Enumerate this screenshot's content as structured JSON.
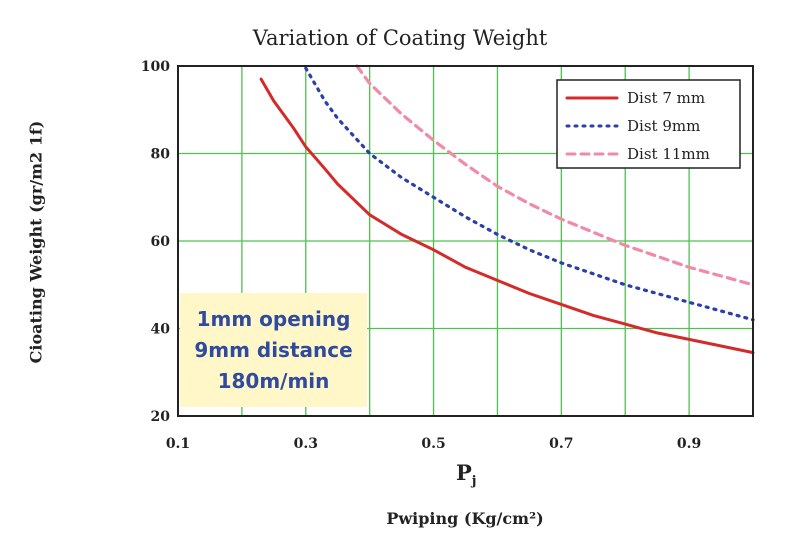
{
  "chart_data": {
    "type": "line",
    "title": "Variation of Coating Weight",
    "xlabel": "Pwiping (Kg/cm²)",
    "ylabel": "Cioating Weight (gr/m2 1f)",
    "xsymbol": "P",
    "xsymbol_sub": "j",
    "xlim": [
      0.1,
      1.0
    ],
    "ylim": [
      20,
      100
    ],
    "xticks": [
      0.1,
      0.3,
      0.5,
      0.7,
      0.9
    ],
    "yticks": [
      20,
      40,
      60,
      80,
      100
    ],
    "grid": true,
    "legend_position": "top-right",
    "series": [
      {
        "name": "Dist 7 mm",
        "color": "#d42a2a",
        "style": "solid",
        "x": [
          0.23,
          0.25,
          0.28,
          0.3,
          0.33,
          0.35,
          0.4,
          0.45,
          0.5,
          0.55,
          0.6,
          0.65,
          0.7,
          0.75,
          0.8,
          0.85,
          0.9,
          0.95,
          1.0
        ],
        "y": [
          97,
          92,
          86,
          81.5,
          76.5,
          73,
          66,
          61.5,
          58,
          54,
          51,
          48,
          45.5,
          43,
          41,
          39,
          37.5,
          36,
          34.5
        ]
      },
      {
        "name": "Dist 9mm",
        "color": "#2a3fa8",
        "style": "dotted",
        "x": [
          0.3,
          0.33,
          0.35,
          0.4,
          0.45,
          0.5,
          0.55,
          0.6,
          0.65,
          0.7,
          0.75,
          0.8,
          0.85,
          0.9,
          0.95,
          1.0
        ],
        "y": [
          99.5,
          92,
          88,
          80,
          74.5,
          70,
          65.5,
          61.5,
          58,
          55,
          52.5,
          50,
          48,
          46,
          44,
          42
        ]
      },
      {
        "name": "Dist 11mm",
        "color": "#f08aa8",
        "style": "dashed",
        "x": [
          0.38,
          0.4,
          0.45,
          0.5,
          0.55,
          0.6,
          0.65,
          0.7,
          0.75,
          0.8,
          0.85,
          0.9,
          0.95,
          1.0
        ],
        "y": [
          100,
          96,
          89,
          83,
          77.5,
          72.5,
          68.5,
          65,
          62,
          59,
          56.5,
          54,
          52,
          50
        ]
      }
    ]
  },
  "annotation": {
    "line1": "1mm opening",
    "line2": "9mm distance",
    "line3": "180m/min"
  }
}
